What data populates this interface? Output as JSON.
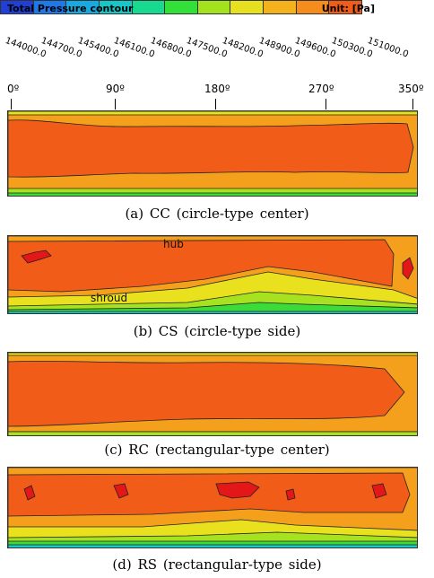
{
  "legend": {
    "title": "Total Pressure contour",
    "unit": "Unit: [Pa]",
    "colors": [
      "#1f3fd6",
      "#1f78e8",
      "#17a9e0",
      "#17c7c7",
      "#17d98f",
      "#33e03a",
      "#a3e21e",
      "#e6e01e",
      "#f3b21b",
      "#f58c1c",
      "#f25c19"
    ],
    "ticks": [
      "144000.0",
      "144700.0",
      "145400.0",
      "146100.0",
      "146800.0",
      "147500.0",
      "148200.0",
      "148900.0",
      "149600.0",
      "150300.0",
      "151000.0"
    ]
  },
  "axis": {
    "angles": [
      "0º",
      "90º",
      "180º",
      "270º",
      "350º"
    ]
  },
  "panels": [
    {
      "caption": "(a)  CC  (circle-type  center)"
    },
    {
      "caption": "(b)  CS  (circle-type  side)",
      "hub_label": "hub",
      "shroud_label": "shroud"
    },
    {
      "caption": "(c)  RC  (rectangular-type  center)"
    },
    {
      "caption": "(d)  RS  (rectangular-type  side)"
    }
  ],
  "contour_colors": {
    "core": "#f25c19",
    "orange": "#f5a01c",
    "yellow": "#e9e11e",
    "lime": "#a6e21f",
    "green": "#3ddb3a",
    "cyan": "#19c9c9",
    "red": "#e31717",
    "line": "#222222"
  }
}
